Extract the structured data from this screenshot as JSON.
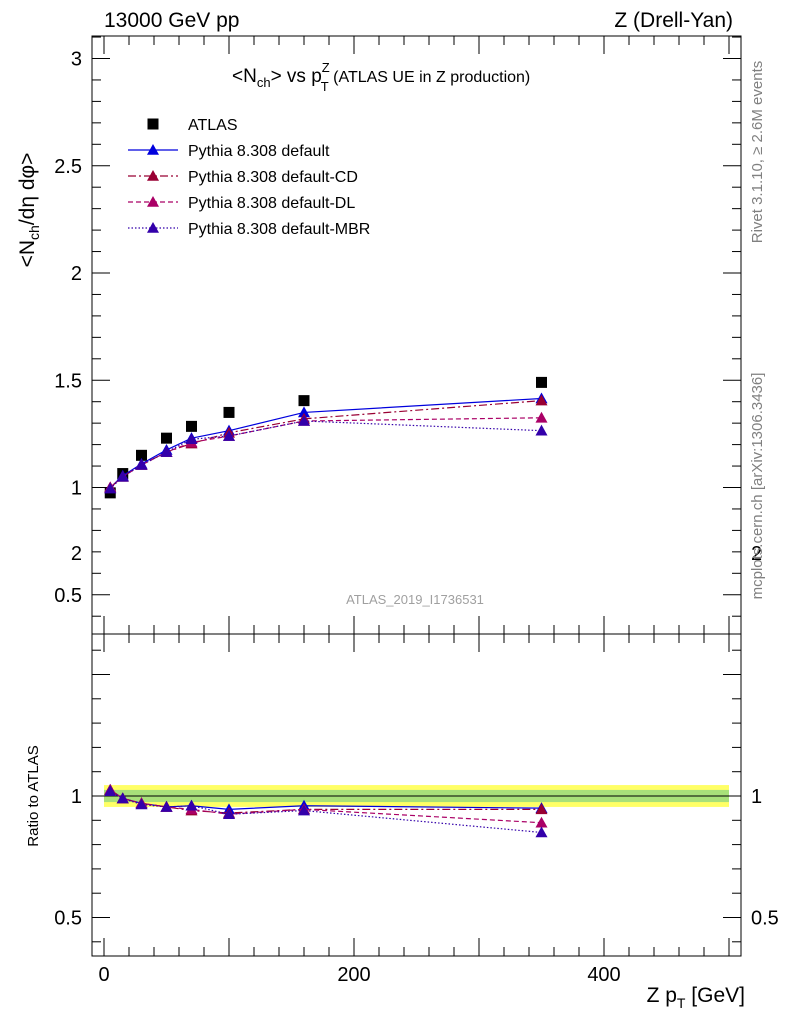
{
  "header": {
    "left": "13000 GeV pp",
    "right": "Z (Drell-Yan)"
  },
  "side_labels": {
    "rivet": "Rivet 3.1.10, ≥ 2.6M events",
    "mcplots": "mcplots.cern.ch [arXiv:1306.3436]"
  },
  "watermark": "ATLAS_2019_I1736531",
  "colors": {
    "data": "#000000",
    "default": "#0000dd",
    "cd": "#990033",
    "dl": "#aa0066",
    "mbr": "#3300aa",
    "band_inner": "#a8e07a",
    "band_outer": "#ffff66"
  },
  "chart_data": [
    {
      "type": "line",
      "panel": "main",
      "title": {
        "pre": "<N",
        "sub1": "ch",
        "mid": "> vs p",
        "sup": "Z",
        "sub2": "T",
        "post": " (ATLAS UE in Z production)"
      },
      "ylabel": {
        "a": "<N",
        "a_sub": "ch",
        "b": "/dη dφ>"
      },
      "ylim": [
        0.35,
        3.1
      ],
      "xlim": [
        -10,
        510
      ],
      "yticks": [
        0.5,
        1,
        1.5,
        2,
        2.5,
        3
      ],
      "yticklabels": [
        "0.5",
        "1",
        "1.5",
        "2",
        "2.5",
        "3"
      ],
      "legend_position": "top-left",
      "x": [
        5,
        15,
        30,
        50,
        70,
        100,
        160,
        350
      ],
      "series": [
        {
          "name": "ATLAS",
          "key": "data",
          "marker": "square",
          "dash": "none",
          "values": [
            0.975,
            1.065,
            1.15,
            1.23,
            1.285,
            1.35,
            1.405,
            1.49
          ]
        },
        {
          "name": "Pythia 8.308 default",
          "key": "default",
          "marker": "triangle",
          "dash": "none",
          "values": [
            1.0,
            1.055,
            1.11,
            1.175,
            1.23,
            1.265,
            1.35,
            1.415
          ]
        },
        {
          "name": "Pythia 8.308 default-CD",
          "key": "cd",
          "marker": "triangle",
          "dash": "8,3,2,3",
          "values": [
            1.0,
            1.05,
            1.105,
            1.165,
            1.205,
            1.255,
            1.32,
            1.405
          ]
        },
        {
          "name": "Pythia 8.308 default-DL",
          "key": "dl",
          "marker": "triangle",
          "dash": "5,3",
          "values": [
            1.0,
            1.05,
            1.105,
            1.165,
            1.21,
            1.24,
            1.31,
            1.325
          ]
        },
        {
          "name": "Pythia 8.308 default-MBR",
          "key": "mbr",
          "marker": "triangle",
          "dash": "1.5,2",
          "values": [
            0.995,
            1.05,
            1.105,
            1.165,
            1.225,
            1.24,
            1.31,
            1.265
          ]
        }
      ]
    },
    {
      "type": "line",
      "panel": "ratio",
      "ylabel": "Ratio to ATLAS",
      "xlabel": {
        "pre": "Z p",
        "sub": "T",
        "post": " [GeV]"
      },
      "ylim": [
        0.35,
        2.35
      ],
      "xlim": [
        -10,
        510
      ],
      "yticks": [
        0.5,
        1,
        2
      ],
      "yticklabels": [
        "0.5",
        "1",
        "2"
      ],
      "xticks": [
        0,
        200,
        400
      ],
      "xticklabels": [
        "0",
        "200",
        "400"
      ],
      "band": {
        "inner": [
          0.975,
          1.025
        ],
        "outer": [
          0.955,
          1.045
        ]
      },
      "x": [
        5,
        15,
        30,
        50,
        70,
        100,
        160,
        350
      ],
      "series": [
        {
          "name": "Pythia 8.308 default",
          "key": "default",
          "dash": "none",
          "values": [
            1.025,
            0.99,
            0.97,
            0.955,
            0.96,
            0.945,
            0.96,
            0.95
          ]
        },
        {
          "name": "Pythia 8.308 default-CD",
          "key": "cd",
          "dash": "8,3,2,3",
          "values": [
            1.025,
            0.99,
            0.97,
            0.955,
            0.94,
            0.93,
            0.945,
            0.945
          ]
        },
        {
          "name": "Pythia 8.308 default-DL",
          "key": "dl",
          "dash": "5,3",
          "values": [
            1.025,
            0.99,
            0.97,
            0.955,
            0.945,
            0.925,
            0.945,
            0.89
          ]
        },
        {
          "name": "Pythia 8.308 default-MBR",
          "key": "mbr",
          "dash": "1.5,2",
          "values": [
            1.02,
            0.99,
            0.965,
            0.955,
            0.96,
            0.925,
            0.94,
            0.85
          ]
        }
      ]
    }
  ]
}
